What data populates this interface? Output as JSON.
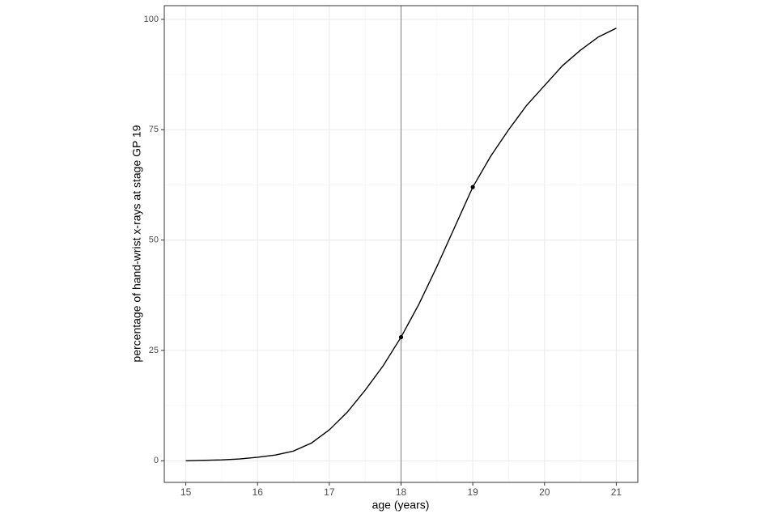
{
  "chart_data": {
    "type": "line",
    "x_label": "age (years)",
    "y_label": "percentage of hand-wrist x-rays at stage GP 19",
    "x": [
      15,
      15.25,
      15.5,
      15.75,
      16,
      16.25,
      16.5,
      16.75,
      17,
      17.25,
      17.5,
      17.75,
      18,
      18.25,
      18.5,
      18.75,
      19,
      19.25,
      19.5,
      19.75,
      20,
      20.25,
      20.5,
      20.75,
      21
    ],
    "series": [
      {
        "color": "#000000",
        "values": [
          0,
          0.1,
          0.2,
          0.4,
          0.8,
          1.3,
          2.2,
          4,
          7,
          11,
          16,
          21.5,
          28,
          35.5,
          44,
          53,
          62,
          69,
          75,
          80.5,
          85,
          89.5,
          93,
          96,
          98
        ]
      }
    ],
    "points": {
      "x": [
        18,
        19
      ],
      "values": [
        28,
        62
      ],
      "color": "#000000"
    },
    "vline": 18,
    "xlim": [
      14.7,
      21.3
    ],
    "xticks": [
      15,
      16,
      17,
      18,
      19,
      20,
      21
    ],
    "ylim": [
      -4.9,
      103.1
    ],
    "yticks": [
      0,
      25,
      50,
      75,
      100
    ],
    "grid": true
  }
}
